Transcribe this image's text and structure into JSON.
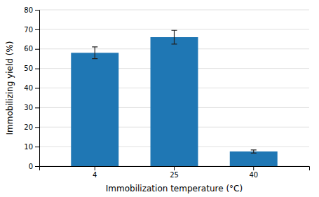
{
  "chart_data": {
    "type": "bar",
    "categories": [
      "4",
      "25",
      "40"
    ],
    "values": [
      58.0,
      66.0,
      7.5
    ],
    "errors": [
      3.0,
      3.5,
      0.8
    ],
    "xlabel": "Immobilization temperature (°C)",
    "ylabel": "Immobilizing yield (%)",
    "ylim": [
      0,
      80
    ],
    "yticks": [
      0,
      10,
      20,
      30,
      40,
      50,
      60,
      70,
      80
    ],
    "grid": true
  }
}
